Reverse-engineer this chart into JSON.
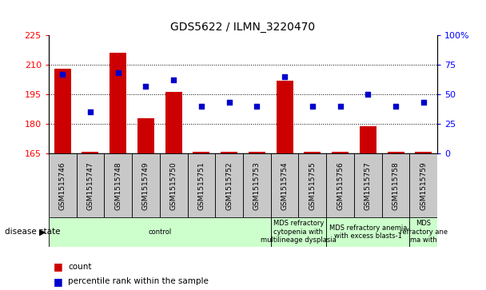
{
  "title": "GDS5622 / ILMN_3220470",
  "samples": [
    "GSM1515746",
    "GSM1515747",
    "GSM1515748",
    "GSM1515749",
    "GSM1515750",
    "GSM1515751",
    "GSM1515752",
    "GSM1515753",
    "GSM1515754",
    "GSM1515755",
    "GSM1515756",
    "GSM1515757",
    "GSM1515758",
    "GSM1515759"
  ],
  "counts": [
    208,
    166,
    216,
    183,
    196,
    166,
    166,
    166,
    202,
    166,
    166,
    179,
    166,
    166
  ],
  "percentile_ranks": [
    67,
    35,
    68,
    57,
    62,
    40,
    43,
    40,
    65,
    40,
    40,
    50,
    40,
    43
  ],
  "ylim_left": [
    165,
    225
  ],
  "ylim_right": [
    0,
    100
  ],
  "yticks_left": [
    165,
    180,
    195,
    210,
    225
  ],
  "yticks_right": [
    0,
    25,
    50,
    75,
    100
  ],
  "bar_color": "#cc0000",
  "dot_color": "#0000cc",
  "bar_width": 0.6,
  "disease_groups": [
    {
      "label": "control",
      "start": 0,
      "end": 8
    },
    {
      "label": "MDS refractory\ncytopenia with\nmultilineage dysplasia",
      "start": 8,
      "end": 10
    },
    {
      "label": "MDS refractory anemia\nwith excess blasts-1",
      "start": 10,
      "end": 13
    },
    {
      "label": "MDS\nrefractory ane\nma with",
      "start": 13,
      "end": 14
    }
  ],
  "disease_state_label": "disease state",
  "sample_box_color": "#c8c8c8",
  "disease_box_color": "#ccffcc",
  "grid_color": "black",
  "bg_color": "white"
}
